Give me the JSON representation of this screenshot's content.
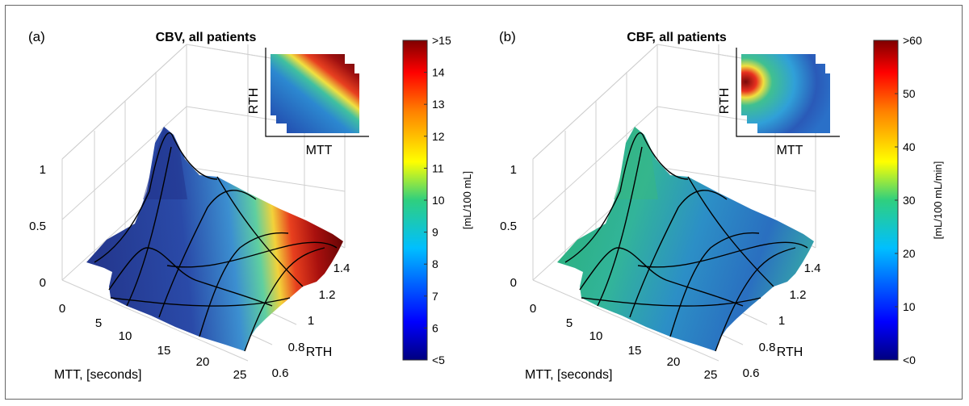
{
  "figure": {
    "panels": [
      {
        "panel_label": "(a)",
        "title": "CBV, all patients",
        "xlabel": "MTT, [seconds]",
        "ylabel": "RTH",
        "x_ticks": [
          "0",
          "5",
          "10",
          "15",
          "20",
          "25"
        ],
        "y_ticks": [
          "0.6",
          "0.8",
          "1",
          "1.2",
          "1.4"
        ],
        "z_ticks": [
          "0",
          "0.5",
          "1"
        ],
        "colorbar": {
          "label": "[mL/100 mL]",
          "ticks": [
            "<5",
            "6",
            "7",
            "8",
            "9",
            "10",
            "11",
            "12",
            "13",
            "14",
            ">15"
          ]
        },
        "inset": {
          "xlabel": "MTT",
          "ylabel": "RTH"
        }
      },
      {
        "panel_label": "(b)",
        "title": "CBF, all patients",
        "xlabel": "MTT, [seconds]",
        "ylabel": "RTH",
        "x_ticks": [
          "0",
          "5",
          "10",
          "15",
          "20",
          "25"
        ],
        "y_ticks": [
          "0.6",
          "0.8",
          "1",
          "1.2",
          "1.4"
        ],
        "z_ticks": [
          "0",
          "0.5",
          "1"
        ],
        "colorbar": {
          "label": "[mL/100 mL/min]",
          "ticks": [
            "<0",
            "10",
            "20",
            "30",
            "40",
            "50",
            ">60"
          ]
        },
        "inset": {
          "xlabel": "MTT",
          "ylabel": "RTH"
        }
      }
    ]
  },
  "chart_data": [
    {
      "type": "surface",
      "title": "CBV, all patients",
      "xlabel": "MTT, [seconds]",
      "ylabel": "RTH",
      "xlim": [
        0,
        25
      ],
      "ylim": [
        0.6,
        1.4
      ],
      "zlim": [
        0,
        1
      ],
      "colorbar_range": [
        5,
        15
      ],
      "colorbar_label": "[mL/100 mL]"
    },
    {
      "type": "surface",
      "title": "CBF, all patients",
      "xlabel": "MTT, [seconds]",
      "ylabel": "RTH",
      "xlim": [
        0,
        25
      ],
      "ylim": [
        0.6,
        1.4
      ],
      "zlim": [
        0,
        1
      ],
      "colorbar_range": [
        0,
        60
      ],
      "colorbar_label": "[mL/100 mL/min]"
    }
  ],
  "colors": {
    "border": "#666666",
    "grid": "#cfcfcf",
    "contour": "#000000"
  }
}
